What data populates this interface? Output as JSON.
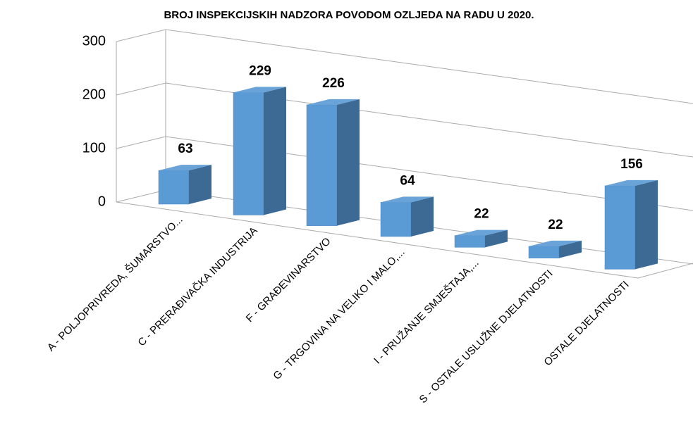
{
  "chart_data": {
    "type": "bar3d",
    "title": "BROJ INSPEKCIJSKIH NADZORA POVODOM OZLJEDA NA RADU U 2020.",
    "categories": [
      "A - POLJOPRIVREDA, ŠUMARSTVO...",
      "C - PRERAĐIVAČKA INDUSTRIJA",
      "F - GRAĐEVINARSTVO",
      "G - TRGOVINA NA VELIKO I MALO,...",
      "I - PRUŽANJE SMJEŠTAJA,...",
      "S - OSTALE USLUŽNE DJELATNOSTI",
      "OSTALE DJELATNOSTI"
    ],
    "values": [
      63,
      229,
      226,
      64,
      22,
      22,
      156
    ],
    "color": "#5b9bd5",
    "ylim": [
      0,
      300
    ],
    "yticks": [
      0,
      100,
      200,
      300
    ],
    "grid": true
  }
}
